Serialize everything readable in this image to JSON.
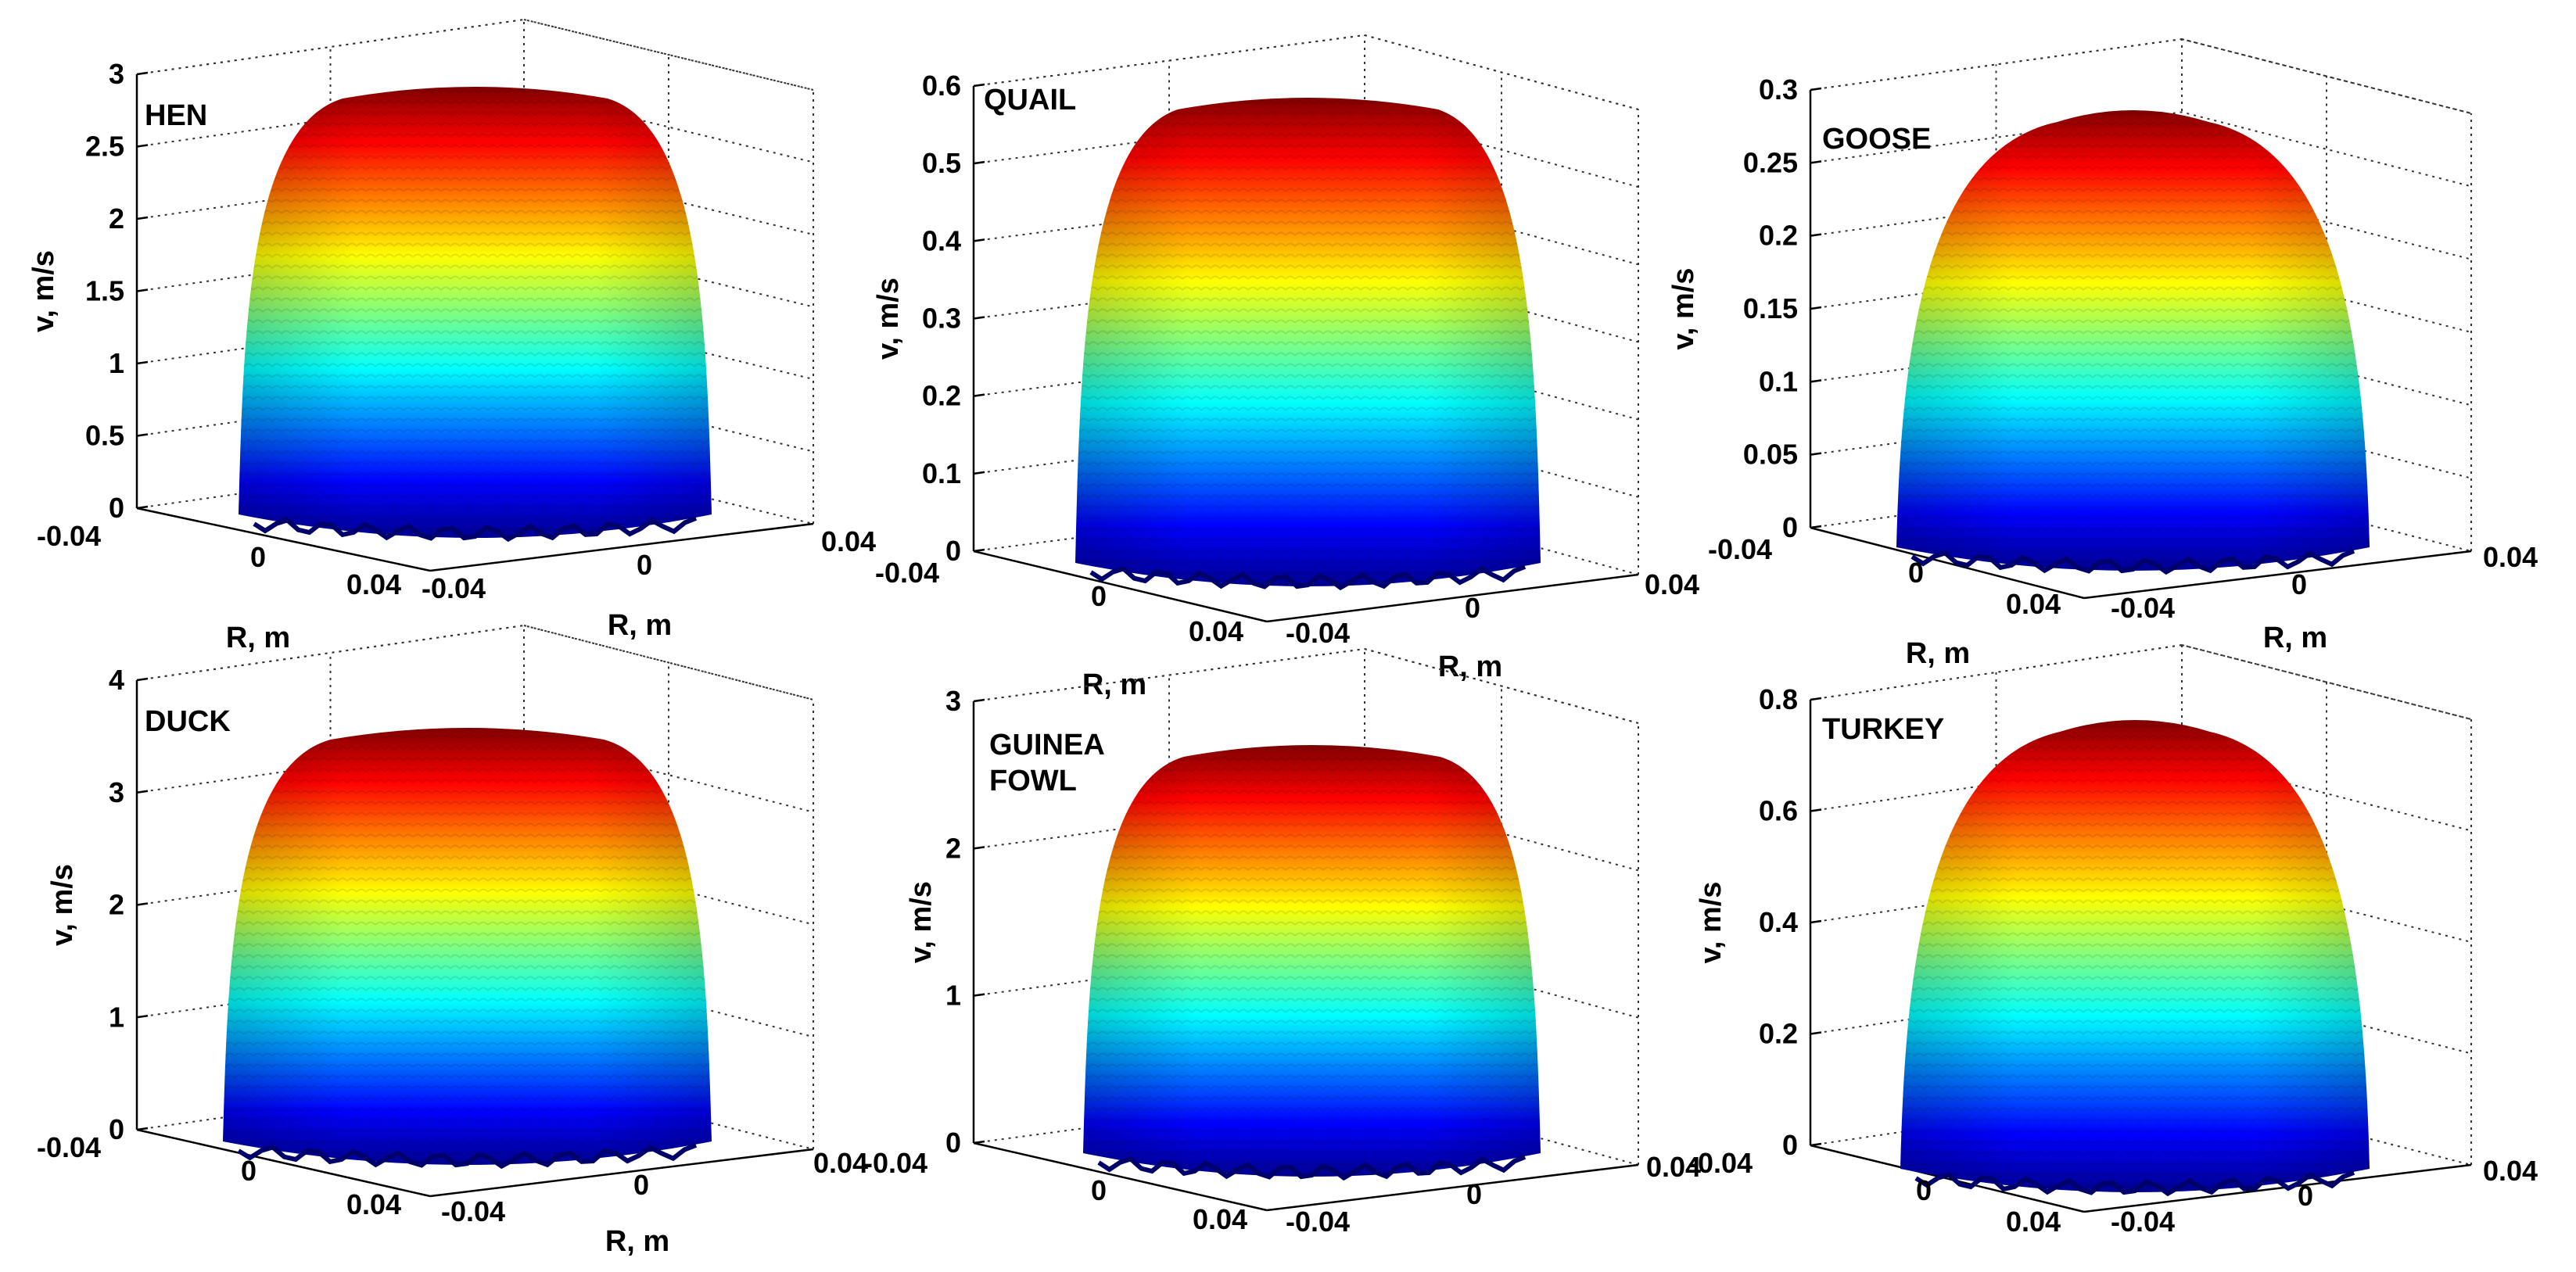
{
  "figure": {
    "background": "#ffffff"
  },
  "chart_data": [
    {
      "type": "surface",
      "title": "HEN",
      "title_lines": [
        "HEN"
      ],
      "zlabel": "v, m/s",
      "xlabel": "R, m",
      "ylabel": "R, m",
      "zlim": [
        0,
        3
      ],
      "zticks": [
        "0",
        "0.5",
        "1",
        "1.5",
        "2",
        "2.5",
        "3"
      ],
      "xlim": [
        -0.04,
        0.04
      ],
      "xticks": [
        "-0.04",
        "0",
        "0.04"
      ],
      "ylim": [
        -0.04,
        0.04
      ],
      "yticks": [
        "-0.04",
        "0",
        "0.04"
      ],
      "peak_velocity": 2.9,
      "surface_shape": "flat-topped dome",
      "colormap": "jet",
      "grid": "on"
    },
    {
      "type": "surface",
      "title": "QUAIL",
      "title_lines": [
        "QUAIL"
      ],
      "zlabel": "v, m/s",
      "xlabel": "R, m",
      "ylabel": "R, m",
      "zlim": [
        0,
        0.6
      ],
      "zticks": [
        "0",
        "0.1",
        "0.2",
        "0.3",
        "0.4",
        "0.5",
        "0.6"
      ],
      "xlim": [
        -0.04,
        0.04
      ],
      "xticks": [
        "-0.04",
        "0",
        "0.04"
      ],
      "ylim": [
        -0.04,
        0.04
      ],
      "yticks": [
        "-0.04",
        "0",
        "0.04"
      ],
      "peak_velocity": 0.57,
      "surface_shape": "flat-topped dome",
      "colormap": "jet",
      "grid": "on"
    },
    {
      "type": "surface",
      "title": "GOOSE",
      "title_lines": [
        "GOOSE"
      ],
      "zlabel": "v, m/s",
      "xlabel": "R, m",
      "ylabel": "R, m",
      "zlim": [
        0,
        0.3
      ],
      "zticks": [
        "0",
        "0.05",
        "0.1",
        "0.15",
        "0.2",
        "0.25",
        "0.3"
      ],
      "xlim": [
        -0.04,
        0.04
      ],
      "xticks": [
        "-0.04",
        "0",
        "0.04"
      ],
      "ylim": [
        -0.04,
        0.04
      ],
      "yticks": [
        "-0.04",
        "0",
        "0.04"
      ],
      "peak_velocity": 0.28,
      "surface_shape": "rounded dome",
      "colormap": "jet",
      "grid": "on"
    },
    {
      "type": "surface",
      "title": "DUCK",
      "title_lines": [
        "DUCK"
      ],
      "zlabel": "v, m/s",
      "xlabel": "R, m",
      "ylabel": "",
      "zlim": [
        0,
        4
      ],
      "zticks": [
        "0",
        "1",
        "2",
        "3",
        "4"
      ],
      "xlim": [
        -0.04,
        0.04
      ],
      "xticks": [
        "-0.04",
        "0",
        "0.04"
      ],
      "ylim": [
        -0.04,
        0.04
      ],
      "yticks": [
        "-0.04",
        "0",
        "0.04"
      ],
      "peak_velocity": 3.5,
      "surface_shape": "flat-topped dome",
      "colormap": "jet",
      "grid": "on"
    },
    {
      "type": "surface",
      "title": "GUINEA FOWL",
      "title_lines": [
        "GUINEA",
        "FOWL"
      ],
      "zlabel": "v, m/s",
      "xlabel": "",
      "ylabel": "",
      "zlim": [
        0,
        3
      ],
      "zticks": [
        "0",
        "1",
        "2",
        "3"
      ],
      "xlim": [
        -0.04,
        0.04
      ],
      "xticks": [
        "-0.04",
        "0",
        "0.04"
      ],
      "ylim": [
        -0.04,
        0.04
      ],
      "yticks": [
        "-0.04",
        "0",
        "0.04"
      ],
      "peak_velocity": 2.7,
      "surface_shape": "flat-topped dome",
      "colormap": "jet",
      "grid": "on"
    },
    {
      "type": "surface",
      "title": "TURKEY",
      "title_lines": [
        "TURKEY"
      ],
      "zlabel": "v, m/s",
      "xlabel": "",
      "ylabel": "",
      "zlim": [
        0,
        0.8
      ],
      "zticks": [
        "0",
        "0.2",
        "0.4",
        "0.6",
        "0.8"
      ],
      "xlim": [
        -0.04,
        0.04
      ],
      "xticks": [
        "-0.04",
        "0",
        "0.04"
      ],
      "ylim": [
        -0.04,
        0.04
      ],
      "yticks": [
        "-0.04",
        "0",
        "0.04"
      ],
      "peak_velocity": 0.75,
      "surface_shape": "rounded dome",
      "colormap": "jet",
      "grid": "on"
    }
  ]
}
